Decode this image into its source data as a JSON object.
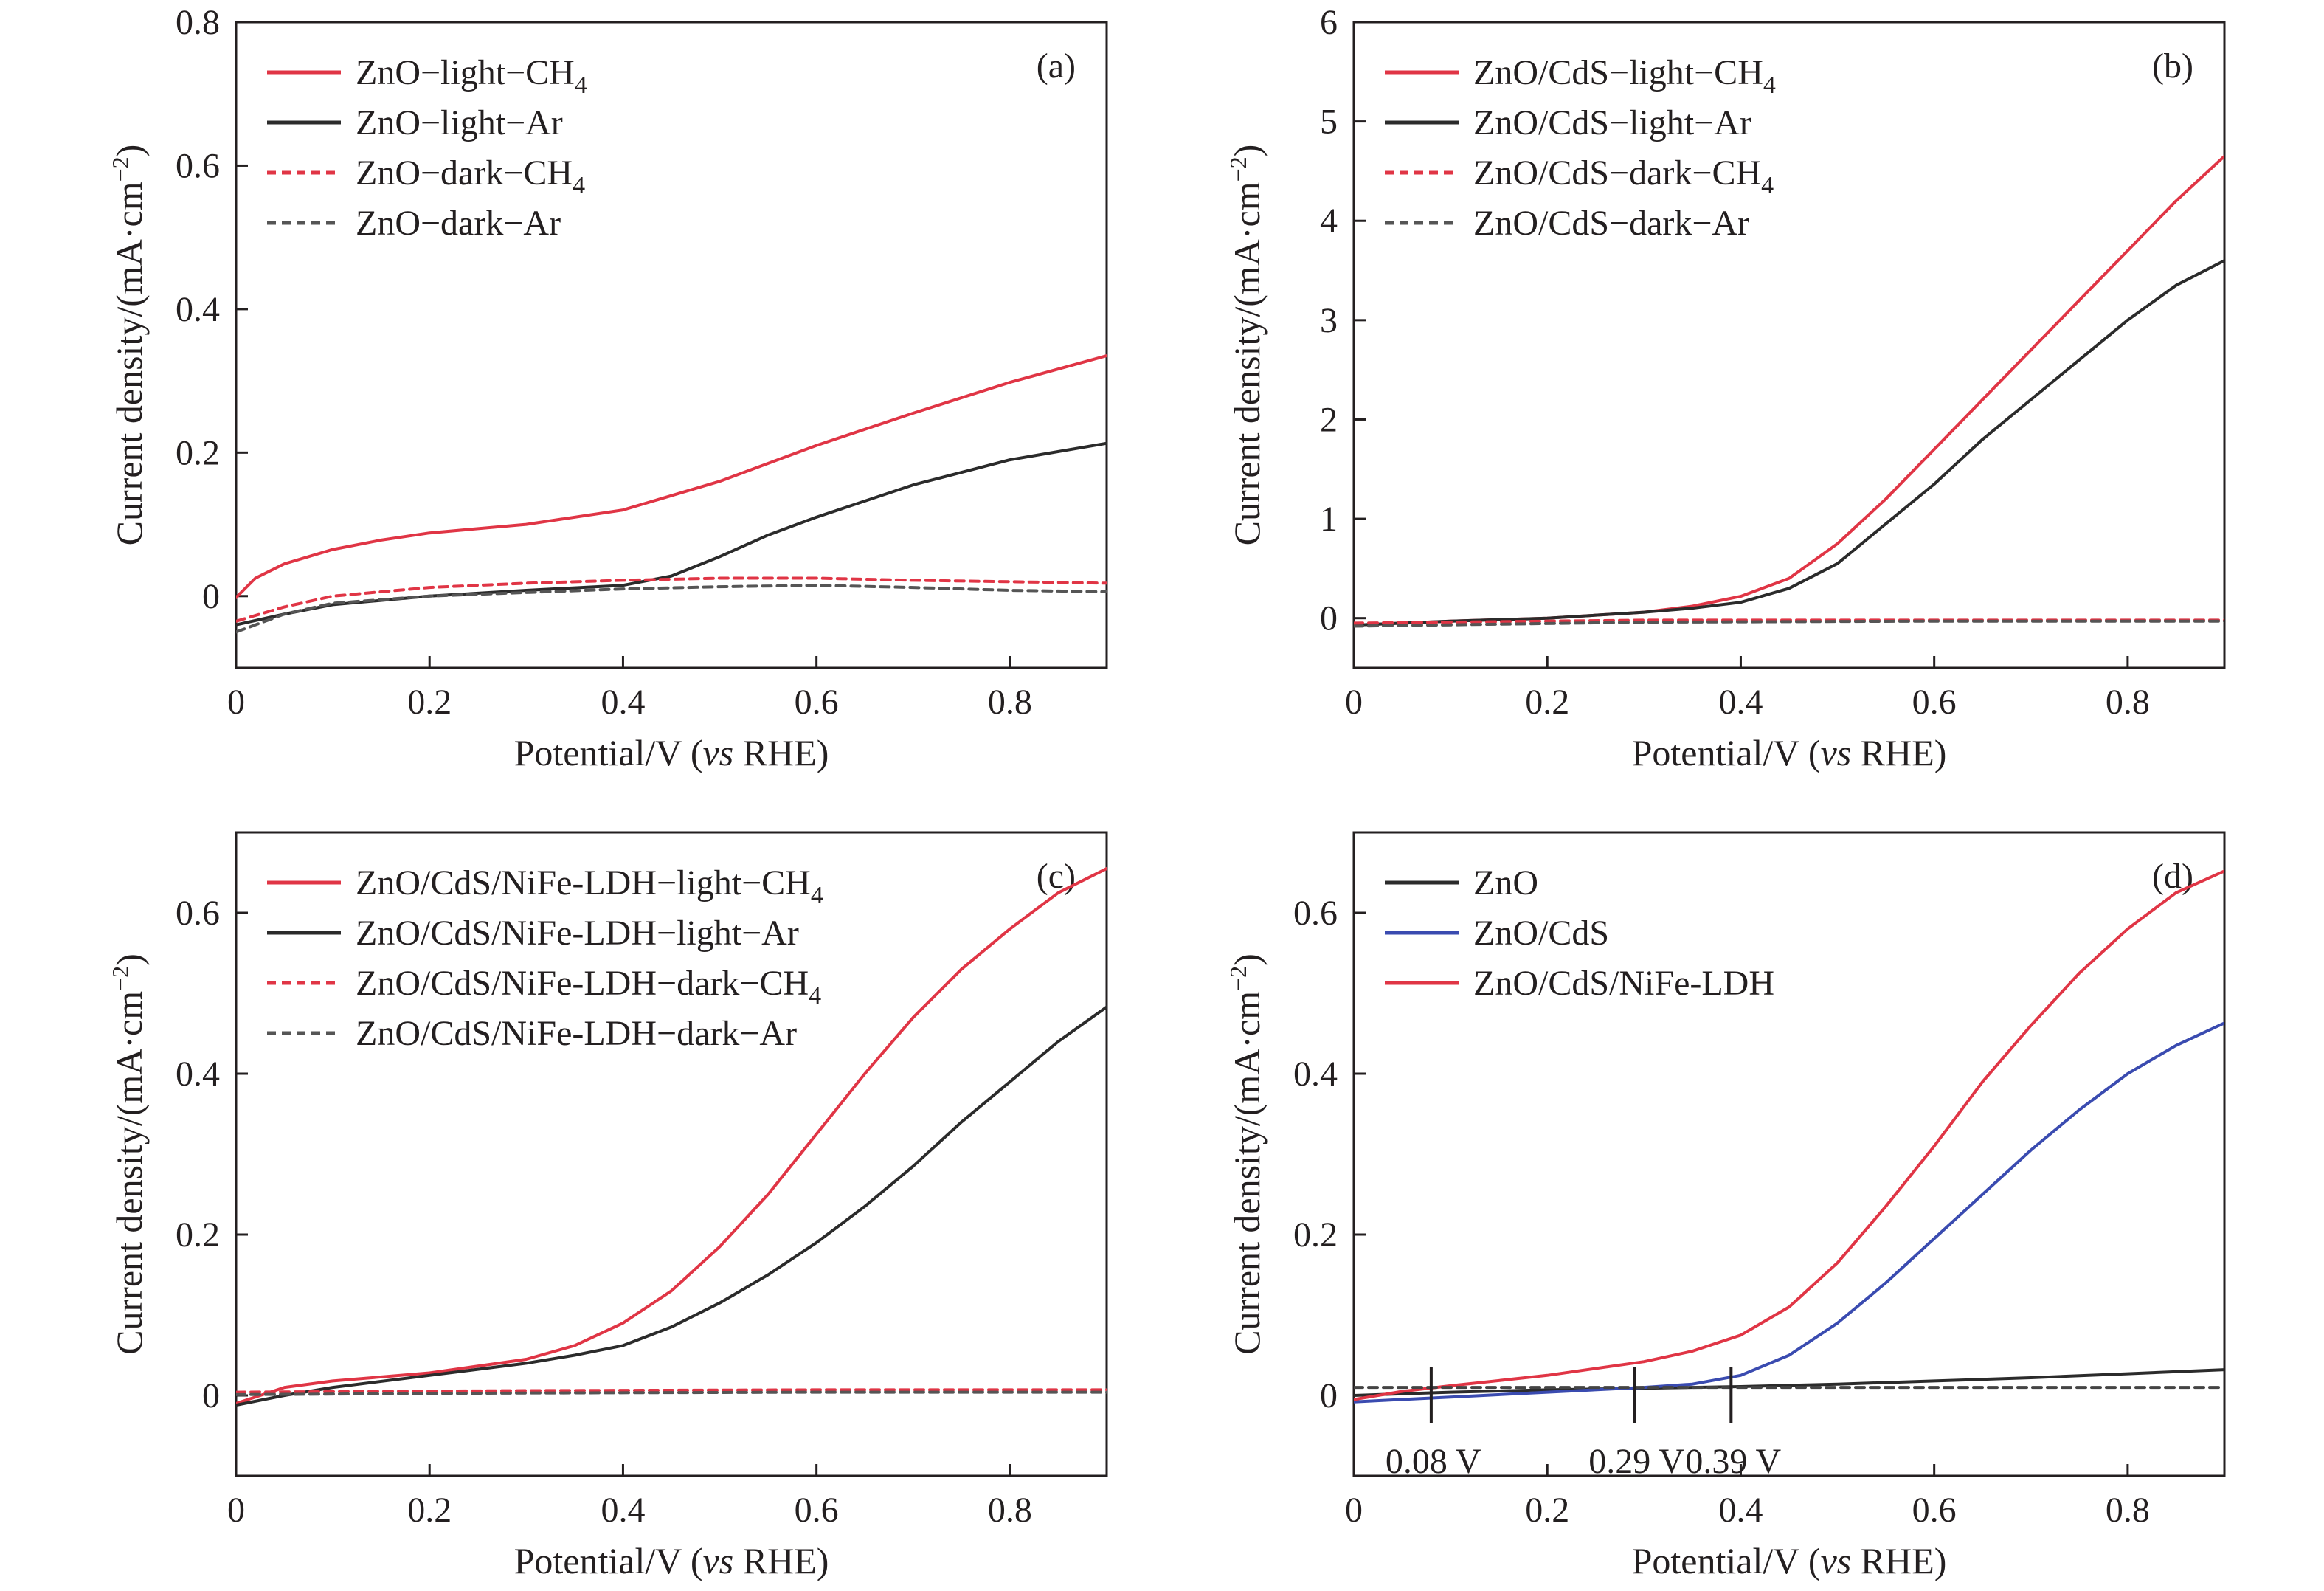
{
  "chart_data": [
    {
      "panel_tag": "(a)",
      "type": "line",
      "xlabel_parts": [
        "Potential/V (",
        "vs",
        " RHE)"
      ],
      "ylabel_parts": [
        "Current density/(mA·cm",
        "−2",
        ")"
      ],
      "xlim": [
        0,
        0.9
      ],
      "ylim": [
        -0.1,
        0.8
      ],
      "xticks": [
        0,
        0.2,
        0.4,
        0.6,
        0.8
      ],
      "xtick_labels": [
        "0",
        "0.2",
        "0.4",
        "0.6",
        "0.8"
      ],
      "yticks": [
        0,
        0.2,
        0.4,
        0.6,
        0.8
      ],
      "ytick_labels": [
        "0",
        "0.2",
        "0.4",
        "0.6",
        "0.8"
      ],
      "legend_position": "top-left",
      "series": [
        {
          "name": "ZnO−light−CH",
          "name_sub": "4",
          "color": "#e03545",
          "dash": "solid",
          "x": [
            0,
            0.02,
            0.05,
            0.1,
            0.15,
            0.2,
            0.3,
            0.4,
            0.5,
            0.6,
            0.7,
            0.8,
            0.9
          ],
          "y": [
            -0.002,
            0.025,
            0.045,
            0.065,
            0.078,
            0.088,
            0.1,
            0.12,
            0.16,
            0.21,
            0.255,
            0.298,
            0.335
          ]
        },
        {
          "name": "ZnO−light−Ar",
          "color": "#2b2b2b",
          "dash": "solid",
          "x": [
            0,
            0.05,
            0.1,
            0.2,
            0.3,
            0.4,
            0.45,
            0.5,
            0.55,
            0.6,
            0.7,
            0.8,
            0.9
          ],
          "y": [
            -0.04,
            -0.025,
            -0.012,
            0.0,
            0.008,
            0.015,
            0.028,
            0.055,
            0.085,
            0.11,
            0.155,
            0.19,
            0.213
          ]
        },
        {
          "name": "ZnO−dark−CH",
          "name_sub": "4",
          "color": "#e03545",
          "dash": "dashed",
          "x": [
            0,
            0.05,
            0.1,
            0.2,
            0.3,
            0.4,
            0.5,
            0.6,
            0.7,
            0.8,
            0.9
          ],
          "y": [
            -0.035,
            -0.015,
            0.0,
            0.012,
            0.018,
            0.022,
            0.025,
            0.025,
            0.022,
            0.02,
            0.018
          ]
        },
        {
          "name": "ZnO−dark−Ar",
          "color": "#555555",
          "dash": "dashed",
          "x": [
            0,
            0.05,
            0.1,
            0.2,
            0.3,
            0.4,
            0.5,
            0.6,
            0.7,
            0.8,
            0.9
          ],
          "y": [
            -0.05,
            -0.025,
            -0.01,
            0.0,
            0.005,
            0.01,
            0.013,
            0.015,
            0.012,
            0.008,
            0.006
          ]
        }
      ],
      "annotations": []
    },
    {
      "panel_tag": "(b)",
      "type": "line",
      "xlabel_parts": [
        "Potential/V (",
        "vs",
        " RHE)"
      ],
      "ylabel_parts": [
        "Current density/(mA·cm",
        "−2",
        ")"
      ],
      "xlim": [
        0,
        0.9
      ],
      "ylim": [
        -0.5,
        6
      ],
      "xticks": [
        0,
        0.2,
        0.4,
        0.6,
        0.8
      ],
      "xtick_labels": [
        "0",
        "0.2",
        "0.4",
        "0.6",
        "0.8"
      ],
      "yticks": [
        0,
        1,
        2,
        3,
        4,
        5,
        6
      ],
      "ytick_labels": [
        "0",
        "1",
        "2",
        "3",
        "4",
        "5",
        "6"
      ],
      "legend_position": "top-left",
      "series": [
        {
          "name": "ZnO/CdS−light−CH",
          "name_sub": "4",
          "color": "#e03545",
          "dash": "solid",
          "x": [
            0,
            0.1,
            0.2,
            0.3,
            0.35,
            0.4,
            0.45,
            0.5,
            0.55,
            0.6,
            0.65,
            0.7,
            0.75,
            0.8,
            0.85,
            0.9
          ],
          "y": [
            -0.07,
            -0.03,
            0.0,
            0.06,
            0.12,
            0.22,
            0.4,
            0.75,
            1.2,
            1.7,
            2.2,
            2.7,
            3.2,
            3.7,
            4.2,
            4.65
          ]
        },
        {
          "name": "ZnO/CdS−light−Ar",
          "color": "#2b2b2b",
          "dash": "solid",
          "x": [
            0,
            0.1,
            0.2,
            0.3,
            0.35,
            0.4,
            0.45,
            0.5,
            0.55,
            0.6,
            0.65,
            0.7,
            0.75,
            0.8,
            0.85,
            0.9
          ],
          "y": [
            -0.07,
            -0.03,
            0.0,
            0.06,
            0.1,
            0.16,
            0.3,
            0.55,
            0.95,
            1.35,
            1.8,
            2.2,
            2.6,
            3.0,
            3.35,
            3.6
          ]
        },
        {
          "name": "ZnO/CdS−dark−CH",
          "name_sub": "4",
          "color": "#e03545",
          "dash": "dashed",
          "x": [
            0,
            0.3,
            0.6,
            0.9
          ],
          "y": [
            -0.05,
            -0.02,
            -0.02,
            -0.02
          ]
        },
        {
          "name": "ZnO/CdS−dark−Ar",
          "color": "#555555",
          "dash": "dashed",
          "x": [
            0,
            0.3,
            0.6,
            0.9
          ],
          "y": [
            -0.08,
            -0.04,
            -0.03,
            -0.03
          ]
        }
      ],
      "annotations": []
    },
    {
      "panel_tag": "(c)",
      "type": "line",
      "xlabel_parts": [
        "Potential/V (",
        "vs",
        " RHE)"
      ],
      "ylabel_parts": [
        "Current density/(mA·cm",
        "−2",
        ")"
      ],
      "xlim": [
        0,
        0.9
      ],
      "ylim": [
        -0.1,
        0.7
      ],
      "xticks": [
        0,
        0.2,
        0.4,
        0.6,
        0.8
      ],
      "xtick_labels": [
        "0",
        "0.2",
        "0.4",
        "0.6",
        "0.8"
      ],
      "yticks": [
        0,
        0.2,
        0.4,
        0.6
      ],
      "ytick_labels": [
        "0",
        "0.2",
        "0.4",
        "0.6"
      ],
      "legend_position": "top-left",
      "series": [
        {
          "name": "ZnO/CdS/NiFe-LDH−light−CH",
          "name_sub": "4",
          "color": "#e03545",
          "dash": "solid",
          "x": [
            0,
            0.05,
            0.1,
            0.2,
            0.3,
            0.35,
            0.4,
            0.45,
            0.5,
            0.55,
            0.6,
            0.65,
            0.7,
            0.75,
            0.8,
            0.85,
            0.9
          ],
          "y": [
            -0.01,
            0.01,
            0.018,
            0.028,
            0.045,
            0.062,
            0.09,
            0.13,
            0.185,
            0.25,
            0.325,
            0.4,
            0.47,
            0.53,
            0.58,
            0.625,
            0.655
          ]
        },
        {
          "name": "ZnO/CdS/NiFe-LDH−light−Ar",
          "color": "#2b2b2b",
          "dash": "solid",
          "x": [
            0,
            0.05,
            0.1,
            0.2,
            0.3,
            0.35,
            0.4,
            0.45,
            0.5,
            0.55,
            0.6,
            0.65,
            0.7,
            0.75,
            0.8,
            0.85,
            0.9
          ],
          "y": [
            -0.012,
            0.0,
            0.01,
            0.025,
            0.04,
            0.05,
            0.062,
            0.085,
            0.115,
            0.15,
            0.19,
            0.235,
            0.285,
            0.34,
            0.39,
            0.44,
            0.483
          ]
        },
        {
          "name": "ZnO/CdS/NiFe-LDH−dark−CH",
          "name_sub": "4",
          "color": "#e03545",
          "dash": "dashed",
          "x": [
            0,
            0.3,
            0.6,
            0.9
          ],
          "y": [
            0.004,
            0.006,
            0.007,
            0.007
          ]
        },
        {
          "name": "ZnO/CdS/NiFe-LDH−dark−Ar",
          "color": "#555555",
          "dash": "dashed",
          "x": [
            0,
            0.3,
            0.6,
            0.9
          ],
          "y": [
            0.001,
            0.003,
            0.004,
            0.004
          ]
        }
      ],
      "annotations": []
    },
    {
      "panel_tag": "(d)",
      "type": "line",
      "xlabel_parts": [
        "Potential/V (",
        "vs",
        " RHE)"
      ],
      "ylabel_parts": [
        "Current density/(mA·cm",
        "−2",
        ")"
      ],
      "xlim": [
        0,
        0.9
      ],
      "ylim": [
        -0.1,
        0.7
      ],
      "xticks": [
        0,
        0.2,
        0.4,
        0.6,
        0.8
      ],
      "xtick_labels": [
        "0",
        "0.2",
        "0.4",
        "0.6",
        "0.8"
      ],
      "yticks": [
        0,
        0.2,
        0.4,
        0.6
      ],
      "ytick_labels": [
        "0",
        "0.2",
        "0.4",
        "0.6"
      ],
      "legend_position": "top-left",
      "series": [
        {
          "name": "ZnO",
          "color": "#2b2b2b",
          "dash": "solid",
          "x": [
            0,
            0.1,
            0.2,
            0.3,
            0.4,
            0.5,
            0.6,
            0.7,
            0.8,
            0.9
          ],
          "y": [
            0.0,
            0.004,
            0.007,
            0.009,
            0.011,
            0.014,
            0.018,
            0.022,
            0.027,
            0.032
          ]
        },
        {
          "name": "ZnO/CdS",
          "color": "#3a4bb0",
          "dash": "solid",
          "x": [
            0,
            0.1,
            0.2,
            0.3,
            0.35,
            0.4,
            0.45,
            0.5,
            0.55,
            0.6,
            0.65,
            0.7,
            0.75,
            0.8,
            0.85,
            0.9
          ],
          "y": [
            -0.008,
            -0.002,
            0.004,
            0.01,
            0.014,
            0.025,
            0.05,
            0.09,
            0.14,
            0.195,
            0.25,
            0.305,
            0.355,
            0.4,
            0.435,
            0.463
          ]
        },
        {
          "name": "ZnO/CdS/NiFe-LDH",
          "color": "#e03545",
          "dash": "solid",
          "x": [
            0,
            0.05,
            0.1,
            0.2,
            0.3,
            0.35,
            0.4,
            0.45,
            0.5,
            0.55,
            0.6,
            0.65,
            0.7,
            0.75,
            0.8,
            0.85,
            0.9
          ],
          "y": [
            -0.005,
            0.005,
            0.012,
            0.025,
            0.042,
            0.055,
            0.075,
            0.11,
            0.165,
            0.235,
            0.31,
            0.39,
            0.46,
            0.525,
            0.58,
            0.625,
            0.652
          ]
        },
        {
          "color": "#444444",
          "dash": "dashed",
          "in_legend": false,
          "x": [
            0,
            0.9
          ],
          "y": [
            0.01,
            0.01
          ]
        }
      ],
      "annotations": [
        {
          "x": 0.08,
          "label": "0.08 V"
        },
        {
          "x": 0.29,
          "label": "0.29 V"
        },
        {
          "x": 0.39,
          "label": "0.39 V"
        }
      ]
    }
  ]
}
